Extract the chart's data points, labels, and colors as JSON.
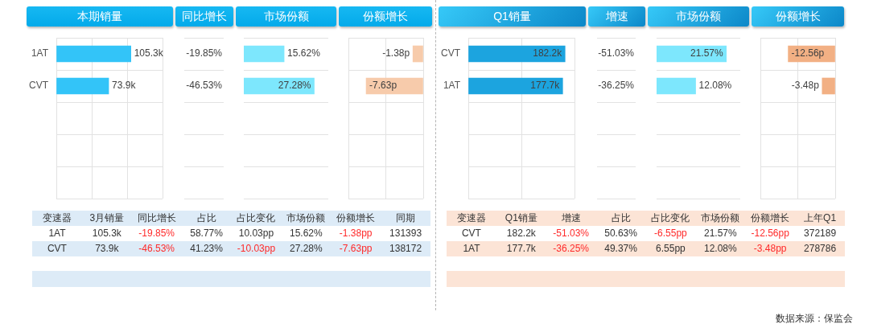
{
  "chart_data": [
    {
      "type": "bar",
      "orientation": "horizontal",
      "title": "本期销量",
      "categories": [
        "1AT",
        "CVT",
        null,
        null,
        null
      ],
      "values": [
        105.3,
        73.9,
        null,
        null,
        null
      ],
      "value_labels": [
        "105.3k",
        "73.9k",
        null,
        null,
        null
      ],
      "color": "#33c4f8",
      "xlim": [
        0,
        150
      ],
      "xticks": [
        {
          "value": 0,
          "label": null
        },
        {
          "value": 50,
          "label": null
        },
        {
          "value": 100,
          "label": null
        },
        {
          "value": 150,
          "label": null
        }
      ],
      "grid": true,
      "tick_labels": "y"
    },
    {
      "type": "other",
      "title": "同比增长",
      "values": [
        -19.85,
        -46.53,
        null,
        null,
        null
      ],
      "value_labels": [
        "-19.85%",
        "-46.53%",
        null,
        null,
        null
      ]
    },
    {
      "type": "bar",
      "orientation": "horizontal",
      "title": "市场份额",
      "categories": [
        null,
        null,
        null,
        null,
        null
      ],
      "values": [
        15.62,
        27.28,
        null,
        null,
        null
      ],
      "value_labels": [
        "15.62%",
        "27.28%",
        null,
        null,
        null
      ],
      "color": "#7de7fd",
      "grid": "y",
      "tick_labels": false
    },
    {
      "type": "bar",
      "orientation": "horizontal",
      "title": "份额增长",
      "categories": [
        null,
        null,
        null,
        null,
        null
      ],
      "values": [
        -1.38,
        -7.63,
        null,
        null,
        null
      ],
      "value_labels": [
        "-1.38p",
        "-7.63p",
        null,
        null,
        null
      ],
      "color": "#f7cbab",
      "xlim": [
        -10,
        0
      ],
      "xticks": [
        {
          "value": -5,
          "label": null
        },
        {
          "value": 0,
          "label": null
        }
      ],
      "grid": true,
      "tick_labels": false
    },
    {
      "type": "other",
      "ylabel": "变速器",
      "categories": [
        "3月销量",
        "同比增长",
        "占比",
        "占比变化",
        "市场份额",
        "份额增长",
        "同期"
      ],
      "y_categories": [
        "1AT",
        "CVT"
      ],
      "cell_labels": [
        [
          "105.3k",
          "-19.85%",
          "58.77%",
          "10.03pp",
          "15.62%",
          "-1.38pp",
          "131393"
        ],
        [
          "73.9k",
          "-46.53%",
          "41.23%",
          "-10.03pp",
          "27.28%",
          "-7.63pp",
          "138172"
        ]
      ]
    },
    {
      "type": "bar",
      "orientation": "horizontal",
      "title": "Q1销量",
      "categories": [
        "CVT",
        "1AT",
        null,
        null,
        null
      ],
      "values": [
        182.2,
        177.7,
        null,
        null,
        null
      ],
      "value_labels": [
        "182.2k",
        "177.7k",
        null,
        null,
        null
      ],
      "color": "#1ca4df",
      "xlim": [
        0,
        200
      ],
      "xticks": [
        {
          "value": 0,
          "label": null
        },
        {
          "value": 100,
          "label": null
        },
        {
          "value": 200,
          "label": null
        }
      ],
      "grid": true,
      "tick_labels": "y"
    },
    {
      "type": "other",
      "title": "增速",
      "values": [
        -51.03,
        -36.25,
        null,
        null,
        null
      ],
      "value_labels": [
        "-51.03%",
        "-36.25%",
        null,
        null,
        null
      ]
    },
    {
      "type": "bar",
      "orientation": "horizontal",
      "title": "市场份额",
      "categories": [
        null,
        null,
        null,
        null,
        null
      ],
      "values": [
        21.57,
        12.08,
        null,
        null,
        null
      ],
      "value_labels": [
        "21.57%",
        "12.08%",
        null,
        null,
        null
      ],
      "color": "#7de7fd",
      "grid": "y",
      "tick_labels": false
    },
    {
      "type": "bar",
      "orientation": "horizontal",
      "title": "份额增长",
      "categories": [
        null,
        null,
        null,
        null,
        null
      ],
      "values": [
        -12.56,
        -3.48,
        null,
        null,
        null
      ],
      "value_labels": [
        "-12.56p",
        "-3.48p",
        null,
        null,
        null
      ],
      "color": "#f2b084",
      "xlim": [
        -20,
        0
      ],
      "xticks": [
        {
          "value": -20,
          "label": null
        },
        {
          "value": -10,
          "label": null
        },
        {
          "value": 0,
          "label": null
        }
      ],
      "grid": true,
      "tick_labels": false
    },
    {
      "type": "other",
      "ylabel": "变速器",
      "categories": [
        "Q1销量",
        "增速",
        "占比",
        "占比变化",
        "市场份额",
        "份额增长",
        "上年Q1"
      ],
      "y_categories": [
        "CVT",
        "1AT"
      ],
      "cell_labels": [
        [
          "182.2k",
          "-51.03%",
          "50.63%",
          "-6.55pp",
          "21.57%",
          "-12.56pp",
          "372189"
        ],
        [
          "177.7k",
          "-36.25%",
          "49.37%",
          "6.55pp",
          "12.08%",
          "-3.48pp",
          "278786"
        ]
      ],
      "annotations": [
        "数据来源：保监会"
      ]
    }
  ]
}
